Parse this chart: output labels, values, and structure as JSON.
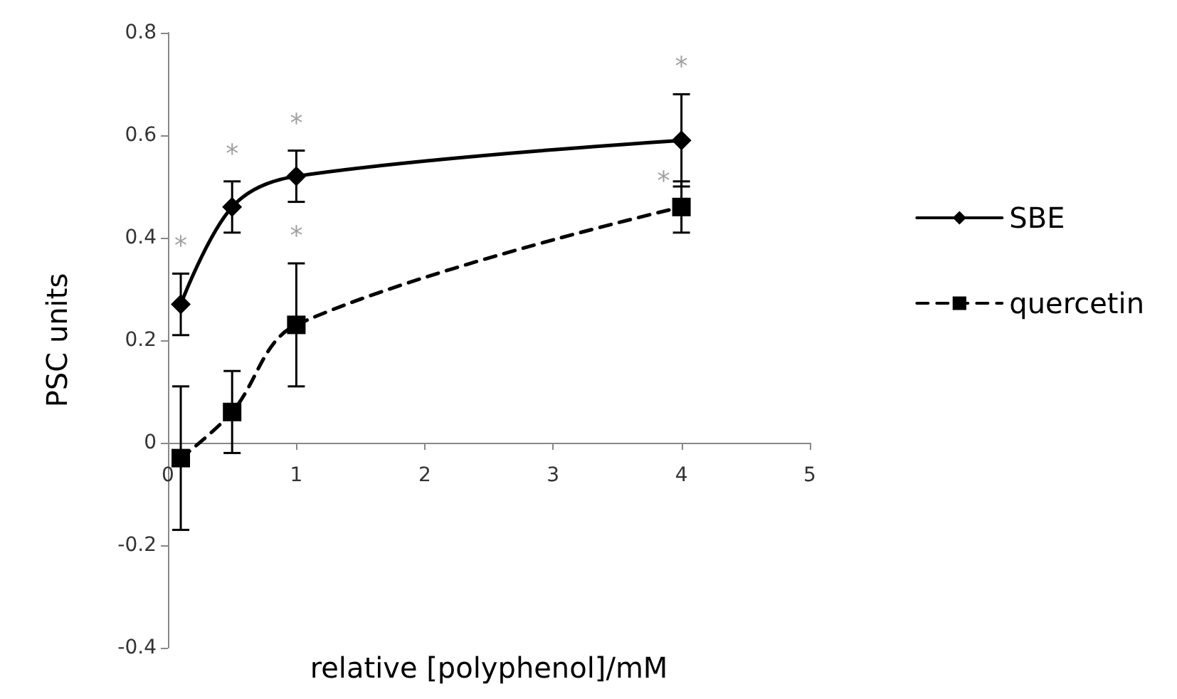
{
  "chart_data": {
    "type": "line",
    "xlabel": "relative [polyphenol]/mM",
    "ylabel": "PSC units",
    "xlim": [
      0,
      5
    ],
    "xticks": [
      0,
      1,
      2,
      3,
      4,
      5
    ],
    "ylim": [
      -0.4,
      0.8
    ],
    "yticks": [
      -0.4,
      -0.2,
      0,
      0.2,
      0.4,
      0.6,
      0.8
    ],
    "legend": "right",
    "series": [
      {
        "name": "SBE",
        "color": "#000000",
        "marker": "diamond",
        "line_style": "solid",
        "x": [
          0.1,
          0.5,
          1,
          4
        ],
        "values": [
          0.27,
          0.46,
          0.52,
          0.59
        ],
        "errors": [
          0.06,
          0.05,
          0.05,
          0.09
        ]
      },
      {
        "name": "quercetin",
        "color": "#000000",
        "marker": "square",
        "line_style": "dashed",
        "x": [
          0.1,
          0.5,
          1,
          4
        ],
        "values": [
          -0.03,
          0.06,
          0.23,
          0.46
        ],
        "errors": [
          0.14,
          0.08,
          0.12,
          0.05
        ]
      }
    ],
    "annotations": [
      {
        "text": "*",
        "x": 0.1,
        "y": 0.33
      },
      {
        "text": "*",
        "x": 0.5,
        "y": 0.51
      },
      {
        "text": "*",
        "x": 1,
        "y": 0.57
      },
      {
        "text": "*",
        "x": 4,
        "y": 0.68
      },
      {
        "text": "*",
        "x": 1,
        "y": 0.35
      },
      {
        "text": "*",
        "x": 4,
        "y": 0.51
      }
    ]
  }
}
